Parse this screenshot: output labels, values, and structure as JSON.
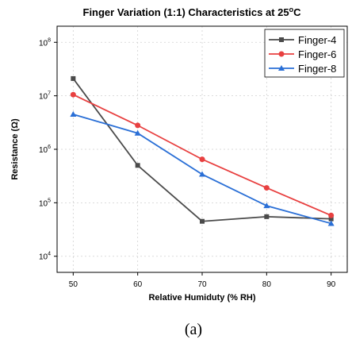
{
  "chart_data": {
    "type": "line",
    "title": "Finger Variation (1:1) Characteristics at 25",
    "title_superscript": "o",
    "title_suffix": "C",
    "xlabel": "Relative Humiduty (% RH)",
    "ylabel": "Resistance (Ω)",
    "x": [
      50,
      60,
      70,
      80,
      90
    ],
    "xlim": [
      47.5,
      92.5
    ],
    "xticks": [
      "50",
      "60",
      "70",
      "80",
      "90"
    ],
    "yscale": "log",
    "ylim": [
      5000,
      200000000
    ],
    "yticks": [
      {
        "value": 10000,
        "base": "10",
        "exp": "4"
      },
      {
        "value": 100000,
        "base": "10",
        "exp": "5"
      },
      {
        "value": 1000000,
        "base": "10",
        "exp": "6"
      },
      {
        "value": 10000000,
        "base": "10",
        "exp": "7"
      },
      {
        "value": 100000000,
        "base": "10",
        "exp": "8"
      }
    ],
    "grid": true,
    "legend_position": "top-right",
    "series": [
      {
        "name": "Finger-4",
        "color": "#4a4a4a",
        "marker": "square",
        "values": [
          21000000,
          500000,
          45000,
          55000,
          50000
        ]
      },
      {
        "name": "Finger-6",
        "color": "#e84040",
        "marker": "circle",
        "values": [
          10500000,
          2800000,
          650000,
          190000,
          58000
        ]
      },
      {
        "name": "Finger-8",
        "color": "#2a6fd6",
        "marker": "triangle",
        "values": [
          4500000,
          2000000,
          340000,
          88000,
          41000
        ]
      }
    ]
  },
  "caption": "(a)"
}
